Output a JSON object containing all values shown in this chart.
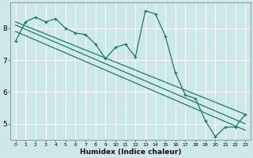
{
  "xlabel": "Humidex (Indice chaleur)",
  "background_color": "#cce8e8",
  "grid_color": "#b0d8d8",
  "line_color": "#1a7a6e",
  "x_ticks": [
    0,
    1,
    2,
    3,
    4,
    5,
    6,
    7,
    8,
    9,
    10,
    11,
    12,
    13,
    14,
    15,
    16,
    17,
    18,
    19,
    20,
    21,
    22,
    23
  ],
  "ylim": [
    4.5,
    8.8
  ],
  "xlim": [
    -0.5,
    23.5
  ],
  "wavy_x": [
    0,
    1,
    2,
    3,
    4,
    5,
    6,
    7,
    8,
    9,
    10,
    11,
    12,
    13,
    14,
    15,
    16,
    17,
    18,
    19,
    20,
    21,
    22,
    23
  ],
  "wavy_y": [
    7.6,
    8.2,
    8.35,
    8.2,
    8.3,
    8.0,
    7.85,
    7.8,
    7.5,
    7.05,
    7.4,
    7.5,
    7.1,
    8.55,
    8.45,
    7.75,
    6.6,
    5.9,
    5.8,
    5.1,
    4.6,
    4.9,
    4.9,
    5.3
  ],
  "line1_x": [
    0,
    23
  ],
  "line1_y": [
    8.2,
    5.3
  ],
  "line2_x": [
    0,
    23
  ],
  "line2_y": [
    8.1,
    5.0
  ],
  "line3_x": [
    0,
    23
  ],
  "line3_y": [
    7.9,
    4.8
  ],
  "ytick_labels": [
    "5",
    "6",
    "7",
    "8"
  ],
  "ytick_values": [
    5,
    6,
    7,
    8
  ]
}
